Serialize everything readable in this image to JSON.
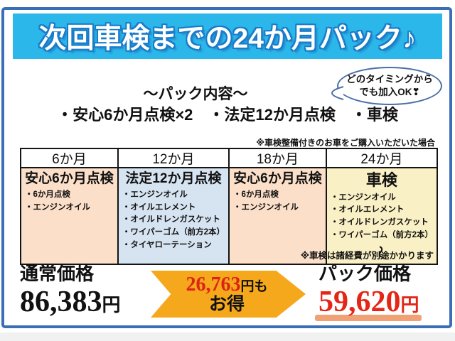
{
  "banner": {
    "title": "次回車検までの24か月パック♪"
  },
  "bubble": {
    "line1": "どのタイミングから",
    "line2": "でも加入OK❣"
  },
  "pack_content": {
    "title": "〜パック内容〜",
    "items_line": "・安心6か月点検×2　・法定12か月点検　・車検"
  },
  "notes": {
    "above_table": "※車検整備付きのお車をご購入いただいた場合",
    "below_table": "※車検は諸経費が別途かかります"
  },
  "table": {
    "headers": [
      "6か月",
      "12か月",
      "18か月",
      "24か月"
    ],
    "columns": [
      {
        "title": "安心6か月点検",
        "items": [
          "・6か月点検",
          "・エンジンオイル"
        ],
        "bg": "#fbdfc9"
      },
      {
        "title": "法定12か月点検",
        "items": [
          "・エンジンオイル",
          "・オイルエレメント",
          "・オイルドレンガスケット",
          "・ワイパーゴム（前方2本）",
          "・タイヤローテーション"
        ],
        "bg": "#d6e3f1"
      },
      {
        "title": "安心6か月点検",
        "items": [
          "・6か月点検",
          "・エンジンオイル"
        ],
        "bg": "#fbdfc9"
      },
      {
        "title": "車検",
        "items": [
          "・エンジンオイル",
          "・オイルエレメント",
          "・オイルドレンガスケット",
          "・ワイパーゴム（前方2本）"
        ],
        "continuation": "〜",
        "bg": "#faf0c5"
      }
    ]
  },
  "pricing": {
    "normal_label": "通常価格",
    "normal_price": "86,383",
    "normal_unit": "円",
    "savings_amount": "26,763",
    "savings_unit": "円も",
    "savings_word": "お得",
    "pack_label": "パック価格",
    "pack_price": "59,620",
    "pack_unit": "円"
  },
  "colors": {
    "frame_blue": "#3a6fb7",
    "banner_cyan": "#2bb7e9",
    "banner_outline": "#1a7cc9",
    "bubble_border": "#4a6fa5",
    "arrow_orange": "#f5a81b",
    "price_red": "#e42617",
    "underline_salmon": "#f0a176",
    "cell_peach": "#fbdfc9",
    "cell_blue": "#d6e3f1",
    "cell_yellow": "#faf0c5"
  }
}
